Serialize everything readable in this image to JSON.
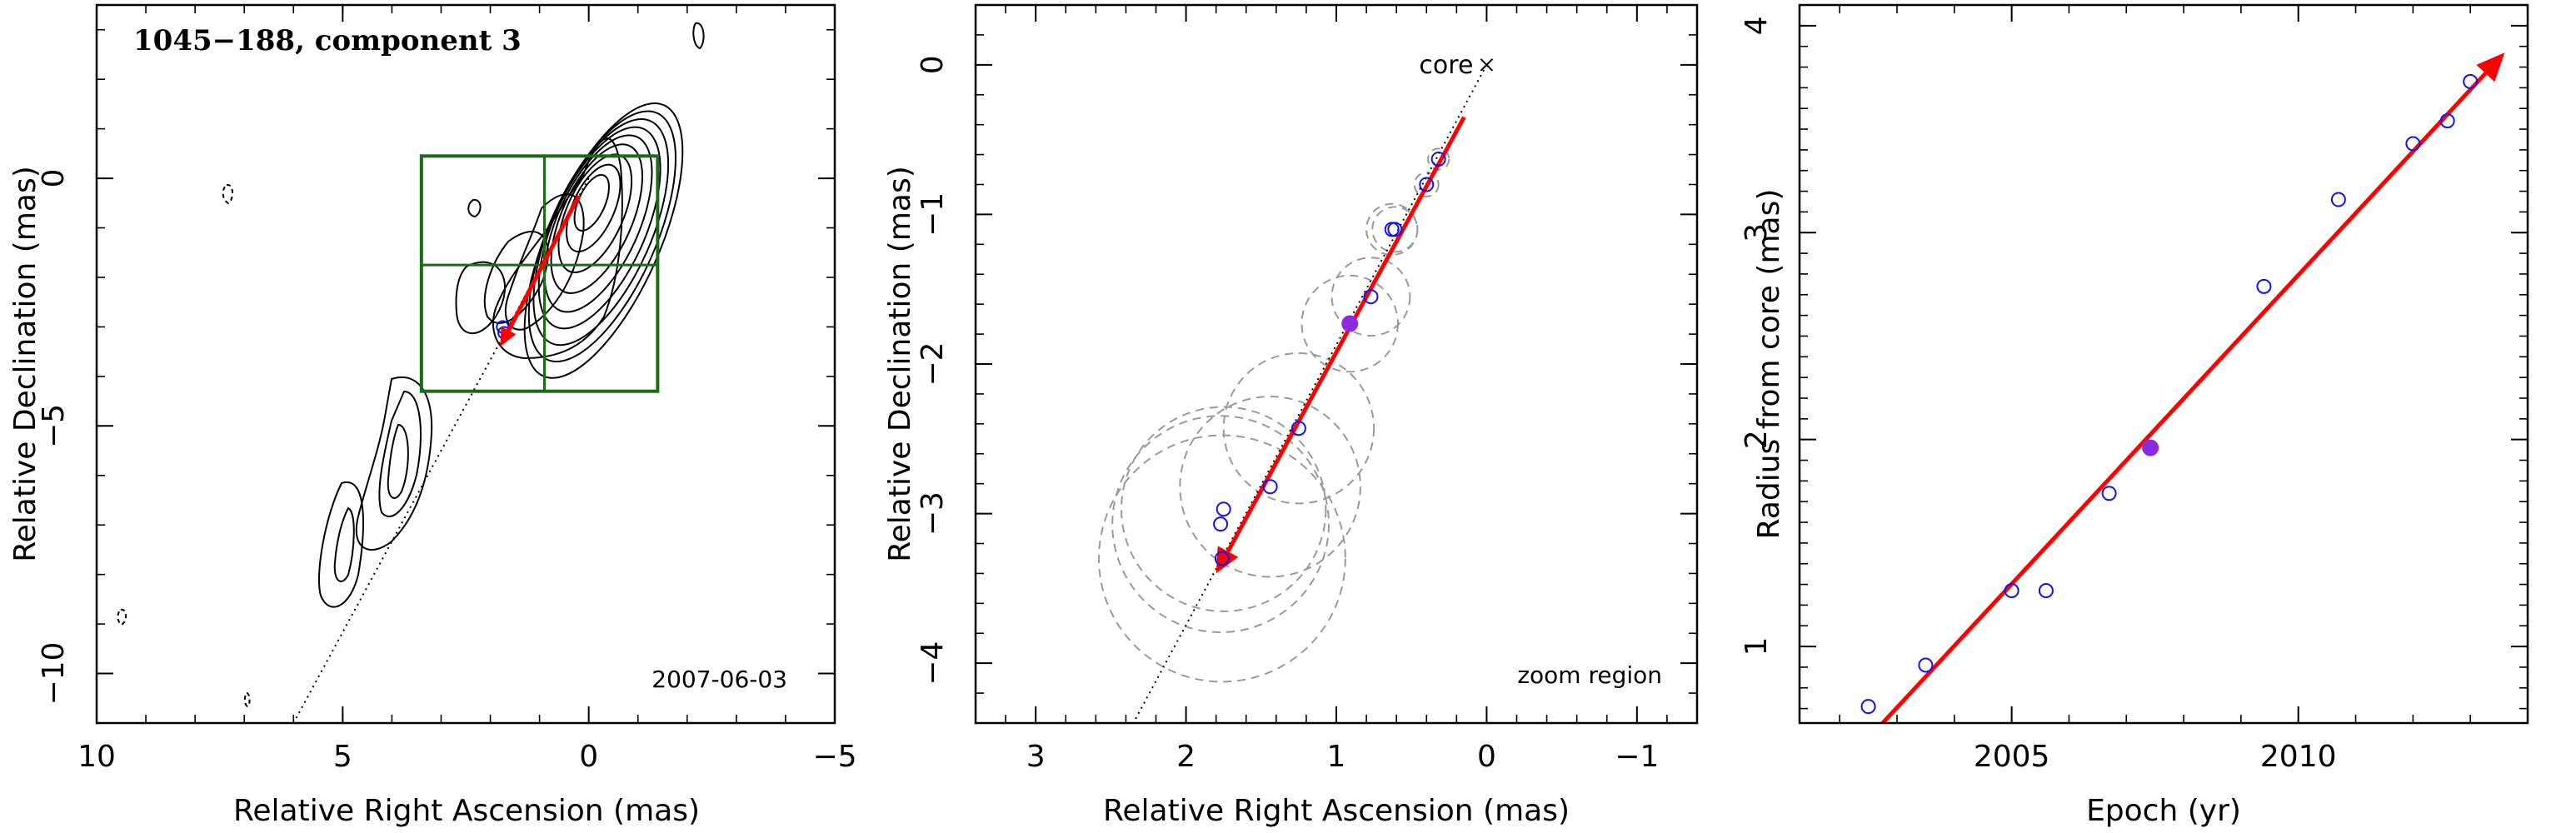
{
  "chart_data": [
    {
      "type": "scatter",
      "panel": "contour-map",
      "title": "1045−188, component 3",
      "date_label": "2007-06-03",
      "xlabel": "Relative Right Ascension (mas)",
      "ylabel": "Relative Declination (mas)",
      "xlim": [
        10,
        -5
      ],
      "ylim": [
        -11,
        3.5
      ],
      "xticks": [
        10,
        5,
        0,
        -5
      ],
      "xtick_labels": [
        "10",
        "5",
        "0",
        "−5"
      ],
      "yticks": [
        0,
        -5,
        -10
      ],
      "ytick_labels": [
        "0",
        "−5",
        "−10"
      ],
      "contour_peak": [
        0,
        -0.3
      ],
      "zoom_box": {
        "x_range": [
          3.4,
          -1.4
        ],
        "y_range": [
          0.45,
          -4.3
        ],
        "x_divider": 0.9,
        "y_divider": -1.75
      },
      "trajectory_arrow": {
        "from": [
          0.2,
          -0.35
        ],
        "to": [
          1.8,
          -3.4
        ]
      },
      "jet_axis_line": {
        "from": [
          0,
          0
        ],
        "to": [
          6.0,
          -11
        ]
      },
      "points": [
        {
          "x": 1.75,
          "y": -3.0
        },
        {
          "x": 1.72,
          "y": -3.12
        }
      ],
      "colors": {
        "contour": "#000000",
        "box": "#1a6b1a",
        "arrow": "#ff0000",
        "point": "#1010ff"
      }
    },
    {
      "type": "scatter",
      "panel": "zoom-region",
      "xlabel": "Relative Right Ascension (mas)",
      "ylabel": "Relative Declination (mas)",
      "xlim": [
        3.4,
        -1.4
      ],
      "ylim": [
        -4.4,
        0.4
      ],
      "xticks": [
        3,
        2,
        1,
        0,
        -1
      ],
      "xtick_labels": [
        "3",
        "2",
        "1",
        "0",
        "−1"
      ],
      "yticks": [
        0,
        -1,
        -2,
        -3,
        -4
      ],
      "ytick_labels": [
        "0",
        "−1",
        "−2",
        "−3",
        "−4"
      ],
      "core_label": "core",
      "core_position": [
        0,
        0
      ],
      "region_label": "zoom region",
      "trajectory_arrow": {
        "from": [
          0.15,
          -0.35
        ],
        "to": [
          1.8,
          -3.4
        ]
      },
      "jet_axis_line": {
        "from": [
          0,
          0
        ],
        "to": [
          2.35,
          -4.4
        ]
      },
      "points": [
        {
          "x": 0.32,
          "y": -0.63,
          "err": 0.07
        },
        {
          "x": 0.4,
          "y": -0.8,
          "err": 0.08
        },
        {
          "x": 0.61,
          "y": -1.1,
          "err": 0.15
        },
        {
          "x": 0.63,
          "y": -1.1,
          "err": 0.17
        },
        {
          "x": 0.77,
          "y": -1.55,
          "err": 0.26
        },
        {
          "x": 1.25,
          "y": -2.43,
          "err": 0.5
        },
        {
          "x": 1.44,
          "y": -2.82,
          "err": 0.6
        },
        {
          "x": 1.75,
          "y": -2.97,
          "err": 0.68
        },
        {
          "x": 1.77,
          "y": -3.07,
          "err": 0.72
        },
        {
          "x": 1.76,
          "y": -3.3,
          "err": 0.82
        }
      ],
      "highlight_point": {
        "x": 0.91,
        "y": -1.73,
        "err": 0.32
      },
      "colors": {
        "point": "#1010ff",
        "highlight": "#8a2be2",
        "arrow": "#ff0000",
        "error_circle": "#9a9a9a"
      }
    },
    {
      "type": "scatter",
      "panel": "radius-vs-epoch",
      "xlabel": "Epoch (yr)",
      "ylabel": "Radius from core (mas)",
      "xlim": [
        2001.3,
        2014.0
      ],
      "ylim": [
        0.63,
        4.1
      ],
      "xticks": [
        2005,
        2010
      ],
      "xtick_labels": [
        "2005",
        "2010"
      ],
      "yticks": [
        1,
        2,
        3,
        4
      ],
      "ytick_labels": [
        "1",
        "2",
        "3",
        "4"
      ],
      "fit_arrow": {
        "from": [
          2002.75,
          0.63
        ],
        "to": [
          2013.6,
          3.87
        ]
      },
      "points": [
        {
          "x": 2002.5,
          "y": 0.71
        },
        {
          "x": 2003.5,
          "y": 0.91
        },
        {
          "x": 2005.0,
          "y": 1.27
        },
        {
          "x": 2005.6,
          "y": 1.27
        },
        {
          "x": 2006.7,
          "y": 1.74
        },
        {
          "x": 2009.4,
          "y": 2.74
        },
        {
          "x": 2010.7,
          "y": 3.16
        },
        {
          "x": 2012.0,
          "y": 3.43
        },
        {
          "x": 2012.6,
          "y": 3.54
        },
        {
          "x": 2013.0,
          "y": 3.73
        }
      ],
      "highlight_point": {
        "x": 2007.42,
        "y": 1.96
      },
      "colors": {
        "point": "#1010ff",
        "highlight": "#8a2be2",
        "arrow": "#ff0000"
      }
    }
  ]
}
